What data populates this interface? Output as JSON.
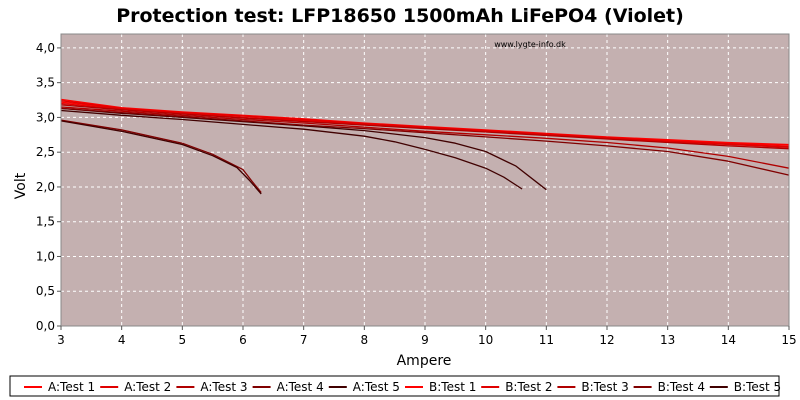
{
  "watermark": "www.lygte-info.dk",
  "chart_data": {
    "type": "line",
    "title": "Protection test: LFP18650 1500mAh LiFePO4 (Violet)",
    "xlabel": "Ampere",
    "ylabel": "Volt",
    "xlim": [
      3,
      15
    ],
    "ylim": [
      0,
      4.2
    ],
    "x_ticks": [
      "3",
      "4",
      "5",
      "6",
      "7",
      "8",
      "9",
      "10",
      "11",
      "12",
      "13",
      "14",
      "15"
    ],
    "y_ticks": [
      "0,0",
      "0,5",
      "1,0",
      "1,5",
      "2,0",
      "2,5",
      "3,0",
      "3,5",
      "4,0"
    ],
    "grid": true,
    "plot_background": "#c4b0b0",
    "legend_position": "bottom",
    "series": [
      {
        "name": "A:Test 1",
        "color": "#ff0000",
        "x": [
          3,
          4,
          5,
          6,
          7,
          8,
          9,
          10,
          11,
          12,
          13,
          14,
          15
        ],
        "y": [
          3.22,
          3.13,
          3.07,
          3.02,
          2.96,
          2.91,
          2.86,
          2.81,
          2.76,
          2.71,
          2.67,
          2.63,
          2.6
        ]
      },
      {
        "name": "A:Test 2",
        "color": "#e00000",
        "x": [
          3,
          4,
          5,
          6,
          7,
          8,
          9,
          10,
          11,
          12,
          13,
          14,
          15
        ],
        "y": [
          3.2,
          3.12,
          3.06,
          3.0,
          2.95,
          2.9,
          2.85,
          2.8,
          2.75,
          2.7,
          2.65,
          2.61,
          2.57
        ]
      },
      {
        "name": "A:Test 3",
        "color": "#b00000",
        "x": [
          3,
          4,
          5,
          6,
          7,
          8,
          9,
          10,
          11,
          12,
          13,
          14,
          15
        ],
        "y": [
          3.18,
          3.11,
          3.05,
          2.99,
          2.94,
          2.89,
          2.84,
          2.79,
          2.74,
          2.69,
          2.64,
          2.59,
          2.55
        ]
      },
      {
        "name": "A:Test 4",
        "color": "#800000",
        "x": [
          3,
          4,
          5,
          5.5,
          6,
          6.15,
          6.3
        ],
        "y": [
          2.96,
          2.82,
          2.63,
          2.47,
          2.25,
          2.08,
          1.92
        ]
      },
      {
        "name": "A:Test 5",
        "color": "#400000",
        "x": [
          3,
          4,
          5,
          6,
          7,
          8,
          8.5,
          9,
          9.5,
          10,
          10.3,
          10.6
        ],
        "y": [
          3.1,
          3.03,
          2.97,
          2.9,
          2.83,
          2.73,
          2.65,
          2.54,
          2.42,
          2.27,
          2.14,
          1.97
        ]
      },
      {
        "name": "B:Test 1",
        "color": "#ff0000",
        "x": [
          3,
          4,
          5,
          6,
          7,
          8,
          9,
          10,
          11,
          12,
          13,
          14,
          15
        ],
        "y": [
          3.26,
          3.14,
          3.08,
          3.03,
          2.98,
          2.92,
          2.87,
          2.82,
          2.77,
          2.72,
          2.68,
          2.64,
          2.61
        ]
      },
      {
        "name": "B:Test 2",
        "color": "#e00000",
        "x": [
          3,
          4,
          5,
          6,
          7,
          8,
          9,
          10,
          11,
          12,
          13,
          14,
          15
        ],
        "y": [
          3.24,
          3.13,
          3.07,
          3.02,
          2.97,
          2.91,
          2.86,
          2.81,
          2.76,
          2.71,
          2.66,
          2.62,
          2.58
        ]
      },
      {
        "name": "B:Test 3",
        "color": "#b00000",
        "x": [
          3,
          4,
          5,
          6,
          7,
          8,
          9,
          10,
          11,
          12,
          13,
          14,
          15
        ],
        "y": [
          3.15,
          3.09,
          3.03,
          2.97,
          2.92,
          2.86,
          2.8,
          2.75,
          2.7,
          2.64,
          2.56,
          2.44,
          2.27
        ]
      },
      {
        "name": "B:Test 4",
        "color": "#800000",
        "x": [
          3,
          4,
          5,
          6,
          7,
          8,
          9,
          10,
          11,
          12,
          13,
          14,
          15
        ],
        "y": [
          3.13,
          3.07,
          3.01,
          2.95,
          2.89,
          2.84,
          2.78,
          2.72,
          2.66,
          2.59,
          2.51,
          2.37,
          2.17
        ]
      },
      {
        "name": "B:Test 5",
        "color": "#400000",
        "x": [
          3,
          4,
          5,
          5.5,
          5.9,
          6.1,
          6.3
        ],
        "y": [
          2.95,
          2.8,
          2.61,
          2.45,
          2.28,
          2.1,
          1.9
        ]
      }
    ],
    "second_curves": [
      {
        "color": "#400000",
        "x": [
          3,
          4,
          5,
          6,
          7,
          8,
          9,
          9.5,
          10,
          10.5,
          11
        ],
        "y": [
          3.13,
          3.06,
          3.0,
          2.94,
          2.88,
          2.81,
          2.71,
          2.63,
          2.51,
          2.3,
          1.96
        ]
      }
    ]
  }
}
